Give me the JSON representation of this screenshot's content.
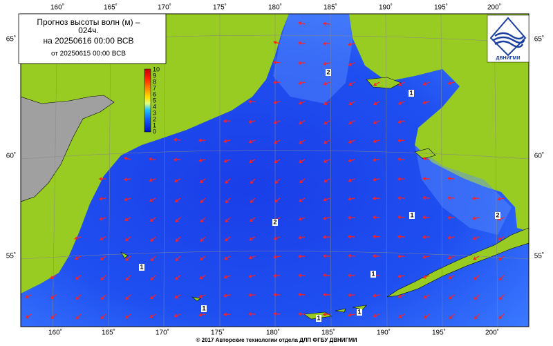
{
  "map": {
    "title": [
      "Прогноз высоты волн (м) –",
      "024ч."
    ],
    "valid_time": "на 20250616 00:00 ВСВ",
    "issued": "от 20250615 00:00 ВСВ",
    "colorbar": {
      "ticks": [
        10,
        9,
        8,
        7,
        6,
        5,
        4,
        3,
        2,
        1,
        0
      ]
    },
    "lon_labels": [
      "160˚",
      "165˚",
      "170˚",
      "175˚",
      "180˚",
      "185˚",
      "190˚",
      "195˚",
      "200˚"
    ],
    "lat_labels": [
      "65˚",
      "60˚",
      "55˚"
    ],
    "contour_labels": [
      "2",
      "1",
      "2",
      "1",
      "2",
      "1",
      "1",
      "1",
      "1",
      "1"
    ],
    "logo": "ДВНИГМИ",
    "footer": "© 2017 Авторские технологии отдела ДЛП ФГБУ ДВНИГМИ"
  }
}
